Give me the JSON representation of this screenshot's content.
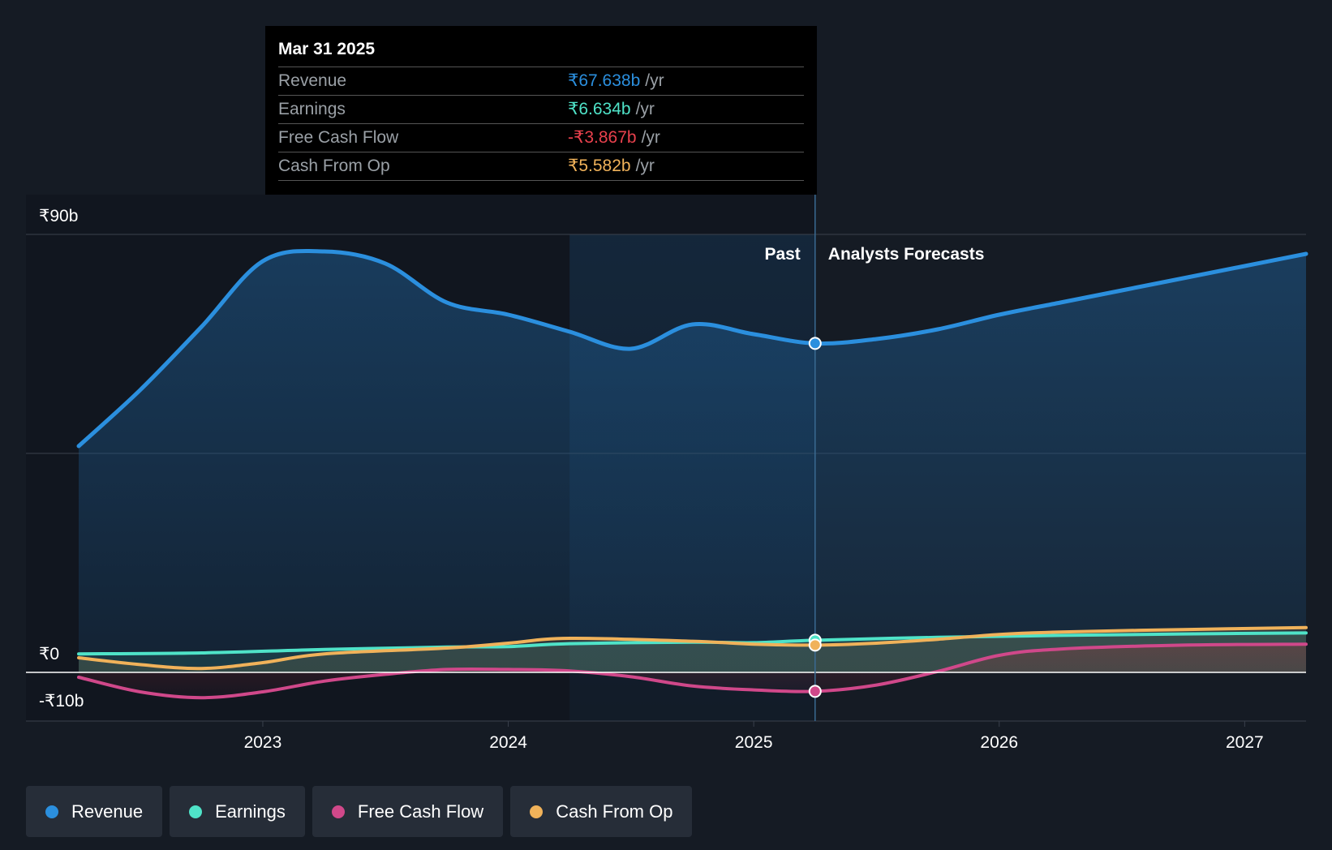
{
  "tooltip": {
    "date": "Mar 31 2025",
    "rows": [
      {
        "label": "Revenue",
        "value": "₹67.638b",
        "unit": "/yr",
        "color": "#2b8fde"
      },
      {
        "label": "Earnings",
        "value": "₹6.634b",
        "unit": "/yr",
        "color": "#4fe3c8"
      },
      {
        "label": "Free Cash Flow",
        "value": "-₹3.867b",
        "unit": "/yr",
        "color": "#e8414d"
      },
      {
        "label": "Cash From Op",
        "value": "₹5.582b",
        "unit": "/yr",
        "color": "#f0b25a"
      }
    ]
  },
  "sections": {
    "past": "Past",
    "forecast": "Analysts Forecasts"
  },
  "legend": [
    {
      "label": "Revenue",
      "color": "#2b8fde"
    },
    {
      "label": "Earnings",
      "color": "#4fe3c8"
    },
    {
      "label": "Free Cash Flow",
      "color": "#d0488a"
    },
    {
      "label": "Cash From Op",
      "color": "#f0b25a"
    }
  ],
  "chart_data": {
    "type": "line",
    "title": "",
    "xlabel": "",
    "ylabel": "",
    "ylim": [
      -10,
      90
    ],
    "xlim": [
      2022.25,
      2027.25
    ],
    "y_ticks": [
      {
        "value": 90,
        "label": "₹90b"
      },
      {
        "value": 0,
        "label": "₹0"
      },
      {
        "value": -10,
        "label": "-₹10b"
      }
    ],
    "x_ticks": [
      {
        "value": 2023,
        "label": "2023"
      },
      {
        "value": 2024,
        "label": "2024"
      },
      {
        "value": 2025,
        "label": "2025"
      },
      {
        "value": 2026,
        "label": "2026"
      },
      {
        "value": 2027,
        "label": "2027"
      }
    ],
    "past_forecast_split": 2025.25,
    "highlight_range": [
      2024.25,
      2025.25
    ],
    "marker_x": 2025.25,
    "series": [
      {
        "name": "Revenue",
        "color": "#2b8fde",
        "points": [
          [
            2022.25,
            46.5
          ],
          [
            2022.5,
            58
          ],
          [
            2022.75,
            71
          ],
          [
            2023.0,
            84.5
          ],
          [
            2023.25,
            86.5
          ],
          [
            2023.5,
            84
          ],
          [
            2023.75,
            76
          ],
          [
            2024.0,
            73.5
          ],
          [
            2024.25,
            70
          ],
          [
            2024.5,
            66.5
          ],
          [
            2024.75,
            71.5
          ],
          [
            2025.0,
            69.5
          ],
          [
            2025.25,
            67.6
          ],
          [
            2025.5,
            68.5
          ],
          [
            2025.75,
            70.5
          ],
          [
            2026.0,
            73.5
          ],
          [
            2026.25,
            76
          ],
          [
            2026.5,
            78.5
          ],
          [
            2026.75,
            81
          ],
          [
            2027.0,
            83.5
          ],
          [
            2027.25,
            86
          ]
        ]
      },
      {
        "name": "Earnings",
        "color": "#4fe3c8",
        "points": [
          [
            2022.25,
            3.8
          ],
          [
            2022.75,
            4.0
          ],
          [
            2023.25,
            4.7
          ],
          [
            2023.75,
            5.2
          ],
          [
            2024.0,
            5.3
          ],
          [
            2024.25,
            5.9
          ],
          [
            2024.75,
            6.2
          ],
          [
            2025.0,
            6.1
          ],
          [
            2025.25,
            6.6
          ],
          [
            2025.75,
            7.2
          ],
          [
            2026.25,
            7.6
          ],
          [
            2026.75,
            7.9
          ],
          [
            2027.25,
            8.1
          ]
        ]
      },
      {
        "name": "Free Cash Flow",
        "color": "#d0488a",
        "points": [
          [
            2022.25,
            -1.0
          ],
          [
            2022.5,
            -4.0
          ],
          [
            2022.75,
            -5.2
          ],
          [
            2023.0,
            -4.0
          ],
          [
            2023.25,
            -1.8
          ],
          [
            2023.5,
            -0.4
          ],
          [
            2023.75,
            0.6
          ],
          [
            2024.0,
            0.6
          ],
          [
            2024.25,
            0.3
          ],
          [
            2024.5,
            -0.9
          ],
          [
            2024.75,
            -2.8
          ],
          [
            2025.0,
            -3.6
          ],
          [
            2025.25,
            -3.9
          ],
          [
            2025.5,
            -2.6
          ],
          [
            2025.75,
            0.2
          ],
          [
            2026.0,
            3.5
          ],
          [
            2026.25,
            4.8
          ],
          [
            2026.75,
            5.6
          ],
          [
            2027.25,
            5.8
          ]
        ]
      },
      {
        "name": "Cash From Op",
        "color": "#f0b25a",
        "points": [
          [
            2022.25,
            3.0
          ],
          [
            2022.5,
            1.6
          ],
          [
            2022.75,
            0.8
          ],
          [
            2023.0,
            2.0
          ],
          [
            2023.25,
            3.8
          ],
          [
            2023.75,
            5.0
          ],
          [
            2024.0,
            6.0
          ],
          [
            2024.25,
            7.0
          ],
          [
            2024.75,
            6.4
          ],
          [
            2025.0,
            5.8
          ],
          [
            2025.25,
            5.6
          ],
          [
            2025.5,
            6.0
          ],
          [
            2025.75,
            6.8
          ],
          [
            2026.0,
            7.8
          ],
          [
            2026.25,
            8.3
          ],
          [
            2026.75,
            8.8
          ],
          [
            2027.25,
            9.2
          ]
        ]
      }
    ]
  }
}
